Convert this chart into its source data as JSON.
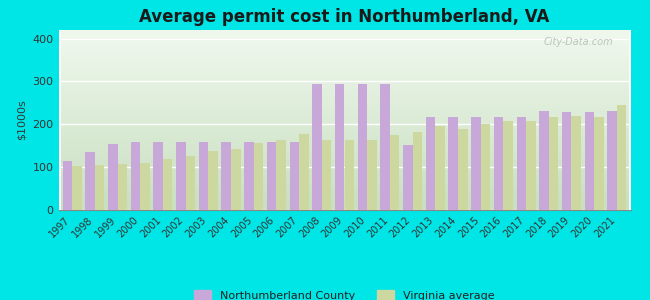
{
  "title": "Average permit cost in Northumberland, VA",
  "ylabel": "$1000s",
  "years": [
    1997,
    1998,
    1999,
    2000,
    2001,
    2002,
    2003,
    2004,
    2005,
    2006,
    2007,
    2008,
    2009,
    2010,
    2011,
    2012,
    2013,
    2014,
    2015,
    2016,
    2017,
    2018,
    2019,
    2020,
    2021
  ],
  "northumberland": [
    115,
    135,
    155,
    158,
    158,
    158,
    158,
    158,
    158,
    158,
    158,
    295,
    293,
    293,
    293,
    152,
    218,
    218,
    218,
    218,
    218,
    230,
    228,
    228,
    232
  ],
  "virginia": [
    103,
    105,
    108,
    110,
    120,
    127,
    137,
    143,
    157,
    163,
    178,
    163,
    163,
    163,
    175,
    183,
    197,
    190,
    200,
    207,
    208,
    218,
    220,
    218,
    245
  ],
  "county_color": "#c8a8d8",
  "virginia_color": "#ccd8a0",
  "bg_color": "#00e5e5",
  "plot_bg": "#deecd8",
  "bar_width": 0.42,
  "ylim": [
    0,
    420
  ],
  "yticks": [
    0,
    100,
    200,
    300,
    400
  ],
  "title_fontsize": 12,
  "axis_label_fontsize": 8,
  "tick_fontsize": 7,
  "legend_fontsize": 8
}
